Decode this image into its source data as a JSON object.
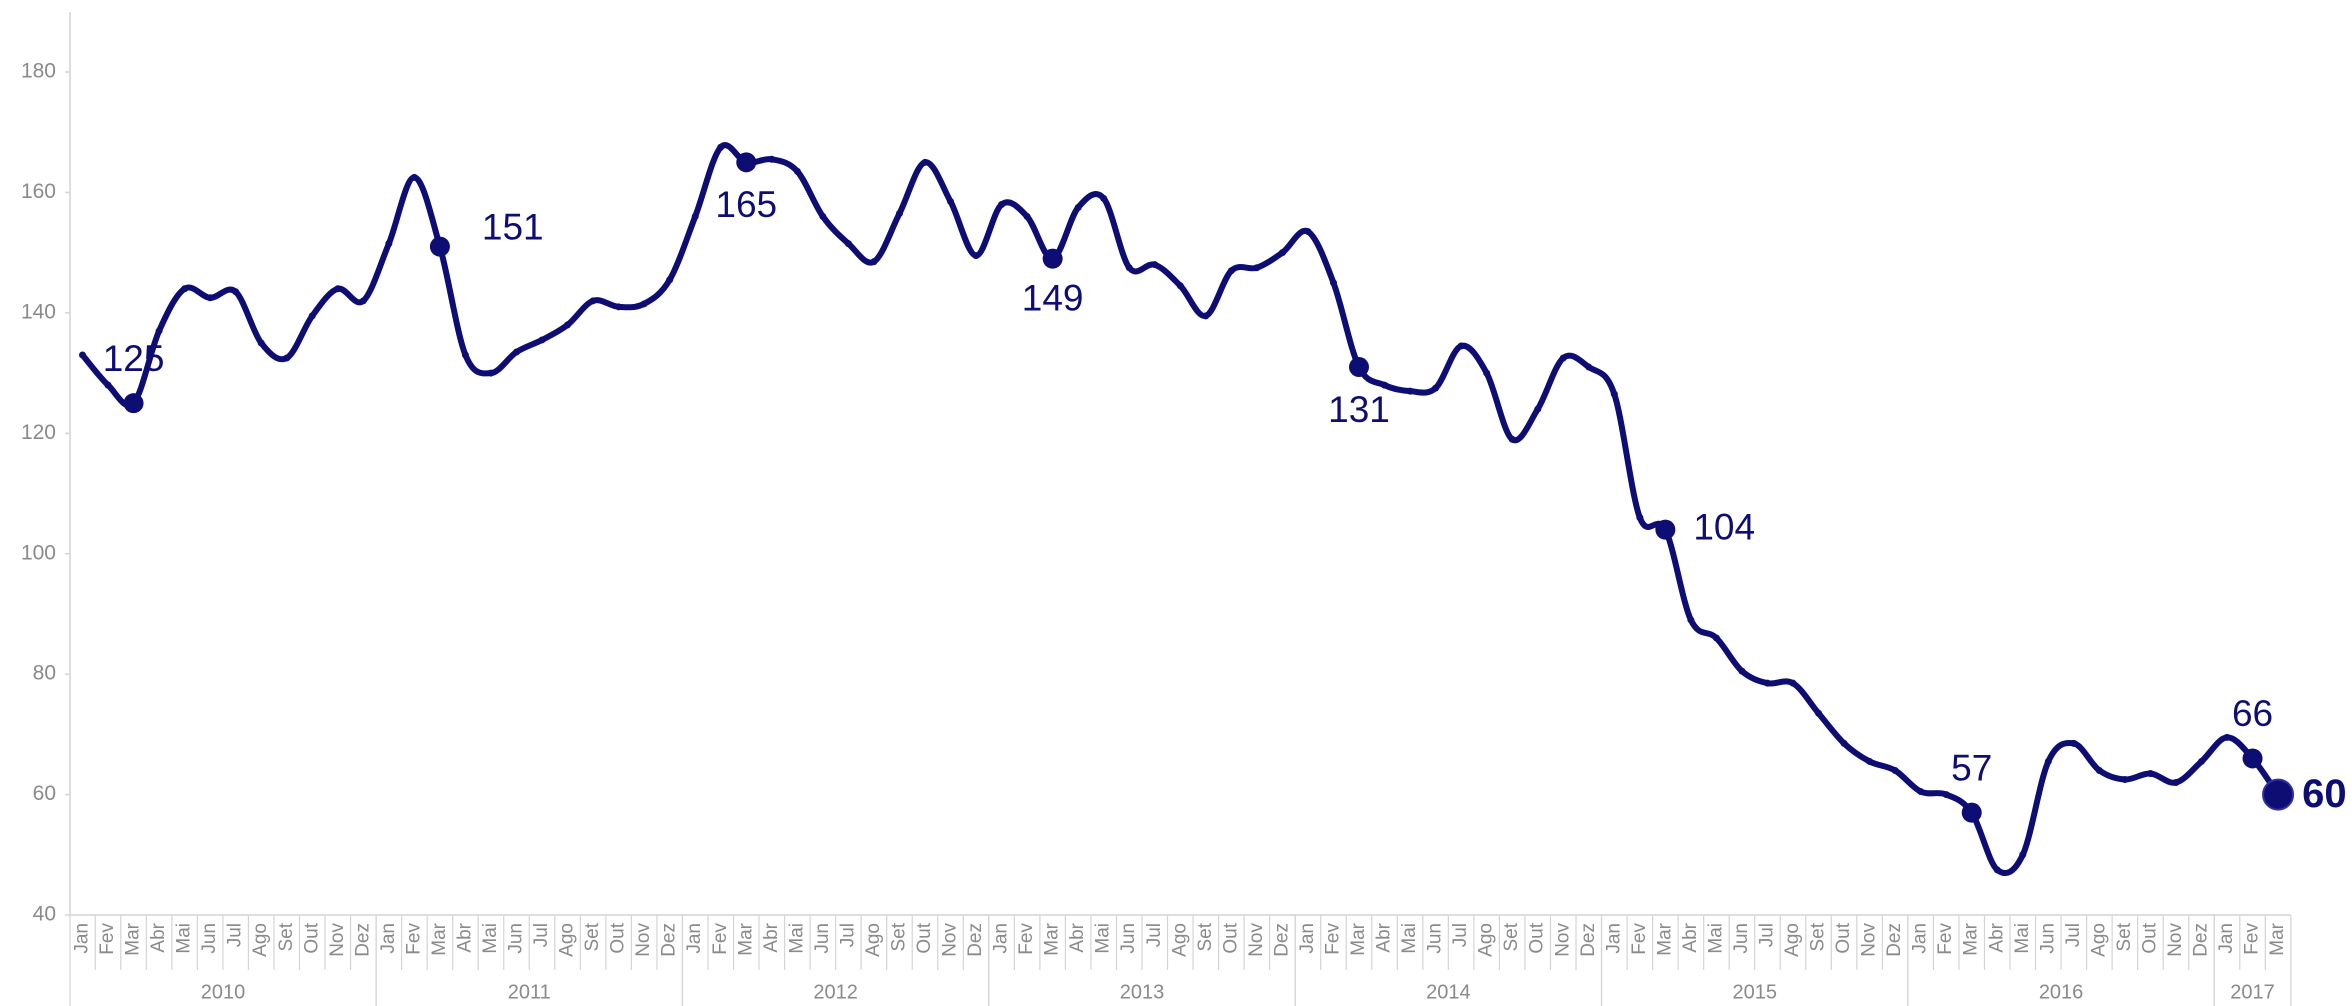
{
  "chart_data": {
    "type": "line",
    "color": "#0d0d73",
    "categories": [
      "Jan",
      "Fev",
      "Mar",
      "Abr",
      "Mai",
      "Jun",
      "Jul",
      "Ago",
      "Set",
      "Out",
      "Nov",
      "Dez",
      "Jan",
      "Fev",
      "Mar",
      "Abr",
      "Mai",
      "Jun",
      "Jul",
      "Ago",
      "Set",
      "Out",
      "Nov",
      "Dez",
      "Jan",
      "Fev",
      "Mar",
      "Abr",
      "Mai",
      "Jun",
      "Jul",
      "Ago",
      "Set",
      "Out",
      "Nov",
      "Dez",
      "Jan",
      "Fev",
      "Mar",
      "Abr",
      "Mai",
      "Jun",
      "Jul",
      "Ago",
      "Set",
      "Out",
      "Nov",
      "Dez",
      "Jan",
      "Fev",
      "Mar",
      "Abr",
      "Mai",
      "Jun",
      "Jul",
      "Ago",
      "Set",
      "Out",
      "Nov",
      "Dez",
      "Jan",
      "Fev",
      "Mar",
      "Abr",
      "Mai",
      "Jun",
      "Jul",
      "Ago",
      "Set",
      "Out",
      "Nov",
      "Dez",
      "Jan",
      "Fev",
      "Mar",
      "Abr",
      "Mai",
      "Jun",
      "Jul",
      "Ago",
      "Set",
      "Out",
      "Nov",
      "Dez",
      "Jan",
      "Fev",
      "Mar"
    ],
    "years": [
      "2010",
      "2011",
      "2012",
      "2013",
      "2014",
      "2015",
      "2016",
      "2017"
    ],
    "values": [
      133,
      128,
      125,
      137,
      144,
      142.5,
      143.5,
      135,
      132.5,
      139.5,
      144,
      142,
      151.5,
      162.5,
      151,
      133,
      130,
      133.5,
      135.5,
      138,
      142,
      141,
      141.5,
      145.5,
      156,
      167.5,
      165,
      165.5,
      163.5,
      156,
      151.5,
      148.5,
      156.5,
      165,
      158.5,
      149.5,
      158,
      156,
      149,
      157.5,
      159,
      147.5,
      148,
      144.5,
      139.5,
      147,
      147.5,
      150,
      153.5,
      145,
      131,
      128,
      127,
      127.5,
      134.5,
      130,
      119,
      124,
      132.5,
      131,
      126.5,
      106,
      104,
      89,
      86,
      80.5,
      78.5,
      78.5,
      73.5,
      68.5,
      65.5,
      64,
      60.5,
      60,
      57,
      47.5,
      50,
      65.5,
      68.5,
      64,
      62.5,
      63.5,
      62,
      65.5,
      69.5,
      66,
      60
    ],
    "value_labels": [
      null,
      null,
      "125",
      null,
      null,
      null,
      null,
      null,
      null,
      null,
      null,
      null,
      null,
      null,
      "151",
      null,
      null,
      null,
      null,
      null,
      null,
      null,
      null,
      null,
      null,
      null,
      "165",
      null,
      null,
      null,
      null,
      null,
      null,
      null,
      null,
      null,
      null,
      null,
      "149",
      null,
      null,
      null,
      null,
      null,
      null,
      null,
      null,
      null,
      null,
      null,
      "131",
      null,
      null,
      null,
      null,
      null,
      null,
      null,
      null,
      null,
      null,
      null,
      "104",
      null,
      null,
      null,
      null,
      null,
      null,
      null,
      null,
      null,
      null,
      null,
      "57",
      null,
      null,
      null,
      null,
      null,
      null,
      null,
      null,
      null,
      null,
      "66",
      "60"
    ],
    "ylim": [
      40,
      180
    ],
    "yticks": [
      40,
      60,
      80,
      100,
      120,
      140,
      160,
      180
    ],
    "grid": false,
    "smooth": true,
    "highlight_last": true
  }
}
